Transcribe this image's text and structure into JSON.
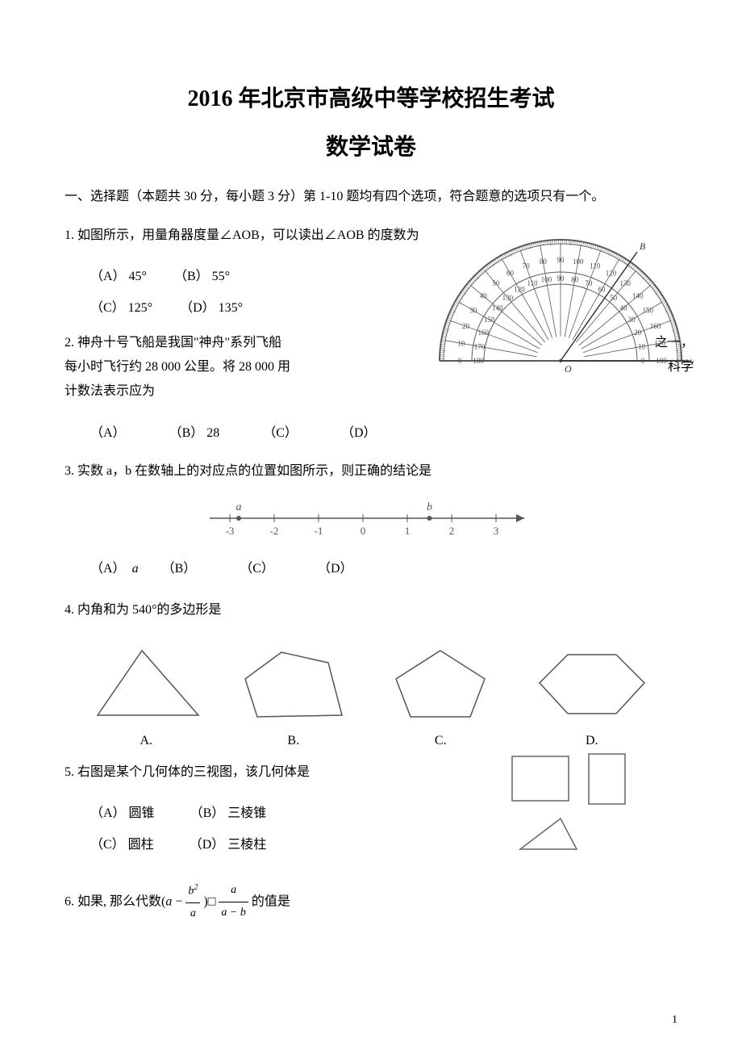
{
  "title_line1": "2016 年北京市高级中等学校招生考试",
  "title_line2": "数学试卷",
  "section1_header": "一、选择题（本题共 30 分，每小题 3 分）第 1-10 题均有四个选项，符合题意的选项只有一个。",
  "q1": {
    "text": "1.  如图所示，用量角器度量∠AOB，可以读出∠AOB 的度数为",
    "optA": "（A）  45°",
    "optB": "（B）  55°",
    "optC": "（C）  125°",
    "optD": "（D）  135°"
  },
  "q2": {
    "text_part1": "2.  神舟十号飞船是我国\"神舟\"系列飞船",
    "text_part2": "之一，",
    "text_part3": "每小时飞行约 28   000 公里。将 28   000 用",
    "text_part4": "科学",
    "text_part5": "计数法表示应为",
    "optA": "（A）",
    "optB": "（B）  28",
    "optC": "（C）",
    "optD": "（D）"
  },
  "q3": {
    "text": "3.  实数 a，b 在数轴上的对应点的位置如图所示，则正确的结论是",
    "optA_prefix": "（A）",
    "optA_var": "a",
    "optB": "（B）",
    "optC": "（C）",
    "optD": "（D）",
    "numberline": {
      "ticks": [
        "-3",
        "-2",
        "-1",
        "0",
        "1",
        "2",
        "3"
      ],
      "a_pos": -2.8,
      "b_pos": 1.5,
      "a_label": "a",
      "b_label": "b"
    }
  },
  "q4": {
    "text": "4.  内角和为 540°的多边形是",
    "labels": [
      "A.",
      "B.",
      "C.",
      "D."
    ]
  },
  "q5": {
    "text": "5.  右图是某个几何体的三视图，该几何体是",
    "optA": "（A）  圆锥",
    "optB": "（B）  三棱锥",
    "optC": "（C）  圆柱",
    "optD": "（D）  三棱柱"
  },
  "q6": {
    "prefix": "6.  如果, 那么代数(",
    "suffix": "的值是"
  },
  "page_number": "1",
  "colors": {
    "text": "#000000",
    "bg": "#ffffff",
    "line": "#4a4a4a"
  }
}
